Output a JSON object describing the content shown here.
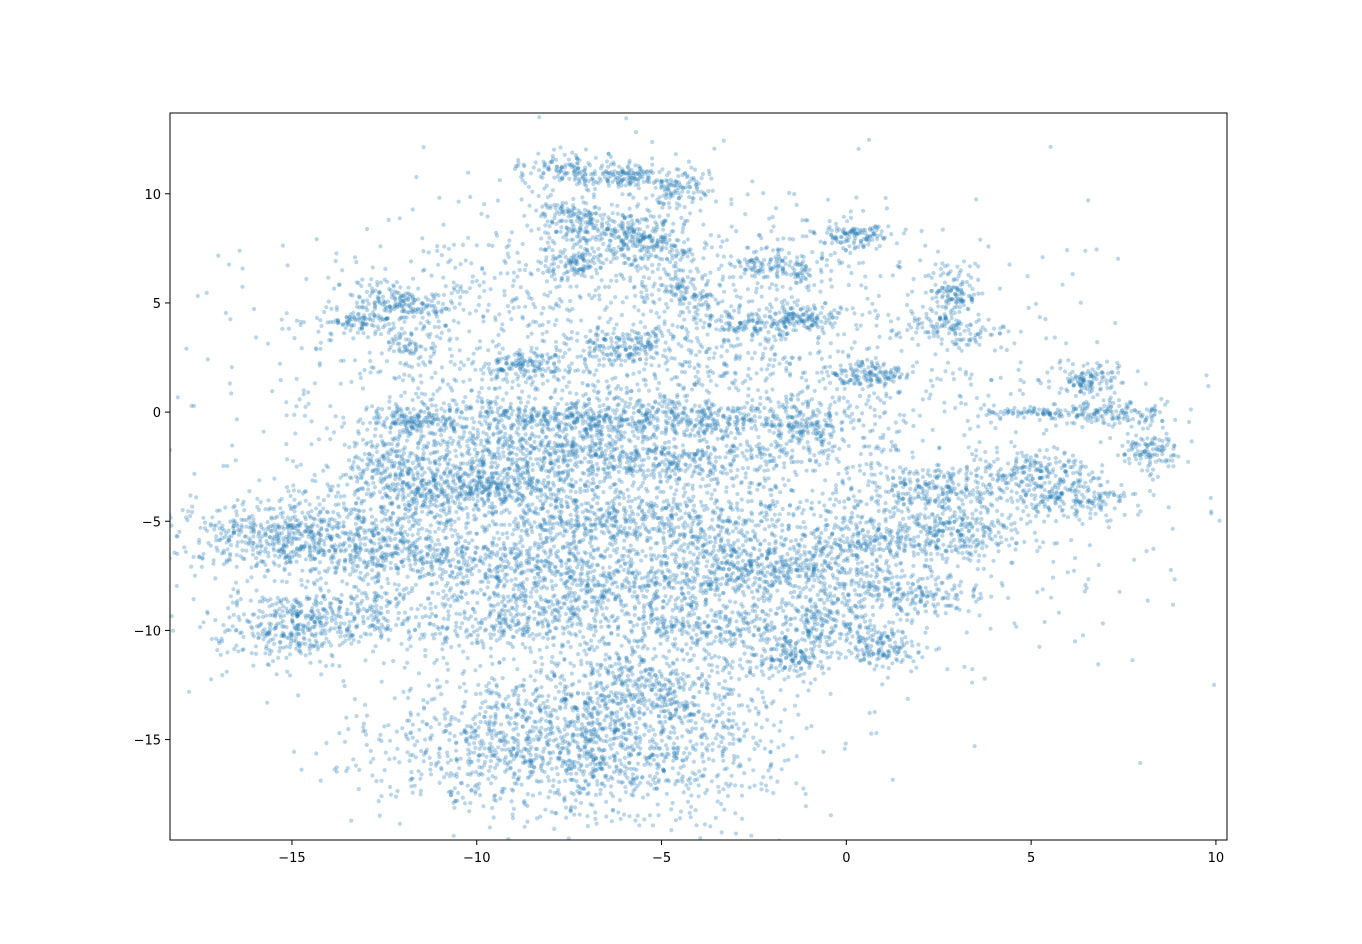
{
  "chart_data": {
    "type": "scatter",
    "title": "",
    "xlabel": "",
    "ylabel": "",
    "xlim": [
      -18.3,
      10.3
    ],
    "ylim": [
      -19.6,
      13.7
    ],
    "x_ticks": [
      -15,
      -10,
      -5,
      0,
      5,
      10
    ],
    "y_ticks": [
      -15,
      -10,
      -5,
      0,
      5,
      10
    ],
    "x_tick_labels": [
      "−15",
      "−10",
      "−5",
      "0",
      "5",
      "10"
    ],
    "y_tick_labels": [
      "−15",
      "−10",
      "−5",
      "0",
      "5",
      "10"
    ],
    "grid": false,
    "legend": "none",
    "marker_color": "#1f77b4",
    "marker_alpha": 0.3,
    "series": [
      {
        "clusters": [
          {
            "cx": -7.4,
            "cy": -15.3,
            "sx": 2.6,
            "sy": 1.7,
            "n": 1500
          },
          {
            "cx": -5.4,
            "cy": -12.6,
            "sx": 1.5,
            "sy": 1.2,
            "n": 450
          },
          {
            "cx": -15.0,
            "cy": -5.7,
            "sx": 1.5,
            "sy": 0.8,
            "n": 550
          },
          {
            "cx": -15.3,
            "cy": -9.9,
            "sx": 0.9,
            "sy": 0.8,
            "n": 260
          },
          {
            "cx": -13.7,
            "cy": -9.4,
            "sx": 0.9,
            "sy": 0.8,
            "n": 220
          },
          {
            "cx": -12.3,
            "cy": -6.1,
            "sx": 1.3,
            "sy": 1.0,
            "n": 300
          },
          {
            "cx": -11.0,
            "cy": -3.3,
            "sx": 1.3,
            "sy": 0.6,
            "n": 280
          },
          {
            "cx": -11.8,
            "cy": -0.5,
            "sx": 0.6,
            "sy": 0.4,
            "n": 150
          },
          {
            "cx": -12.3,
            "cy": -2.2,
            "sx": 0.5,
            "sy": 0.5,
            "n": 100
          },
          {
            "cx": -12.1,
            "cy": 5.1,
            "sx": 0.7,
            "sy": 0.4,
            "n": 150
          },
          {
            "cx": -13.2,
            "cy": 4.1,
            "sx": 0.5,
            "sy": 0.3,
            "n": 90
          },
          {
            "cx": -11.7,
            "cy": 3.3,
            "sx": 0.4,
            "sy": 0.9,
            "n": 90
          },
          {
            "cx": -8.8,
            "cy": 2.1,
            "sx": 0.6,
            "sy": 0.4,
            "n": 130
          },
          {
            "cx": -6.1,
            "cy": 3.0,
            "sx": 0.6,
            "sy": 0.4,
            "n": 130
          },
          {
            "cx": -8.3,
            "cy": -0.2,
            "sx": 1.8,
            "sy": 0.4,
            "n": 300
          },
          {
            "cx": -5.0,
            "cy": -0.4,
            "sx": 1.8,
            "sy": 0.4,
            "n": 300
          },
          {
            "cx": -8.6,
            "cy": -1.7,
            "sx": 1.7,
            "sy": 0.5,
            "n": 280
          },
          {
            "cx": -5.1,
            "cy": -2.2,
            "sx": 1.8,
            "sy": 0.5,
            "n": 300
          },
          {
            "cx": -9.3,
            "cy": -3.4,
            "sx": 1.8,
            "sy": 0.6,
            "n": 320
          },
          {
            "cx": -6.3,
            "cy": -4.9,
            "sx": 2.2,
            "sy": 0.6,
            "n": 380
          },
          {
            "cx": -9.6,
            "cy": -6.7,
            "sx": 2.2,
            "sy": 0.6,
            "n": 360
          },
          {
            "cx": -6.8,
            "cy": -8.2,
            "sx": 2.3,
            "sy": 0.6,
            "n": 380
          },
          {
            "cx": -9.4,
            "cy": -9.6,
            "sx": 1.6,
            "sy": 0.6,
            "n": 280
          },
          {
            "cx": -4.0,
            "cy": -9.8,
            "sx": 1.3,
            "sy": 0.6,
            "n": 250
          },
          {
            "cx": -3.6,
            "cy": -6.8,
            "sx": 1.0,
            "sy": 0.7,
            "n": 200
          },
          {
            "cx": -1.4,
            "cy": -7.2,
            "sx": 1.0,
            "sy": 0.7,
            "n": 230
          },
          {
            "cx": 0.4,
            "cy": -6.0,
            "sx": 1.1,
            "sy": 0.6,
            "n": 230
          },
          {
            "cx": -0.5,
            "cy": -9.7,
            "sx": 1.0,
            "sy": 0.7,
            "n": 220
          },
          {
            "cx": 1.0,
            "cy": -10.9,
            "sx": 0.5,
            "sy": 0.4,
            "n": 110
          },
          {
            "cx": -1.5,
            "cy": -11.2,
            "sx": 0.6,
            "sy": 0.5,
            "n": 140
          },
          {
            "cx": 1.6,
            "cy": -8.2,
            "sx": 1.0,
            "sy": 0.5,
            "n": 200
          },
          {
            "cx": 3.0,
            "cy": -5.4,
            "sx": 0.9,
            "sy": 0.6,
            "n": 220
          },
          {
            "cx": 2.3,
            "cy": -3.6,
            "sx": 1.0,
            "sy": 0.5,
            "n": 200
          },
          {
            "cx": 6.1,
            "cy": -3.9,
            "sx": 0.9,
            "sy": 0.5,
            "n": 220
          },
          {
            "cx": 5.0,
            "cy": -2.6,
            "sx": 0.8,
            "sy": 0.4,
            "n": 150
          },
          {
            "cx": 7.2,
            "cy": -0.1,
            "sx": 0.8,
            "sy": 0.3,
            "n": 130
          },
          {
            "cx": 8.2,
            "cy": -1.8,
            "sx": 0.4,
            "sy": 0.5,
            "n": 110
          },
          {
            "cx": 6.6,
            "cy": 1.6,
            "sx": 0.5,
            "sy": 0.4,
            "n": 120
          },
          {
            "cx": 5.2,
            "cy": 0.0,
            "sx": 0.9,
            "sy": 0.1,
            "n": 80
          },
          {
            "cx": -1.2,
            "cy": -0.6,
            "sx": 0.6,
            "sy": 0.5,
            "n": 150
          },
          {
            "cx": 0.6,
            "cy": 1.7,
            "sx": 0.6,
            "sy": 0.3,
            "n": 120
          },
          {
            "cx": -1.2,
            "cy": 4.4,
            "sx": 0.4,
            "sy": 0.3,
            "n": 80
          },
          {
            "cx": -2.2,
            "cy": 4.1,
            "sx": 0.8,
            "sy": 0.3,
            "n": 130
          },
          {
            "cx": -1.8,
            "cy": 6.7,
            "sx": 0.8,
            "sy": 0.4,
            "n": 140
          },
          {
            "cx": 0.2,
            "cy": 8.1,
            "sx": 0.6,
            "sy": 0.3,
            "n": 120
          },
          {
            "cx": 2.9,
            "cy": 5.5,
            "sx": 0.4,
            "sy": 0.6,
            "n": 130
          },
          {
            "cx": 2.8,
            "cy": 3.8,
            "sx": 0.7,
            "sy": 0.4,
            "n": 110
          },
          {
            "cx": -7.3,
            "cy": 11.0,
            "sx": 0.7,
            "sy": 0.4,
            "n": 140
          },
          {
            "cx": -5.9,
            "cy": 10.8,
            "sx": 0.5,
            "sy": 0.3,
            "n": 110
          },
          {
            "cx": -4.5,
            "cy": 10.2,
            "sx": 0.4,
            "sy": 0.4,
            "n": 100
          },
          {
            "cx": -7.4,
            "cy": 8.9,
            "sx": 0.5,
            "sy": 0.6,
            "n": 130
          },
          {
            "cx": -6.2,
            "cy": 8.2,
            "sx": 0.6,
            "sy": 0.5,
            "n": 150
          },
          {
            "cx": -5.2,
            "cy": 7.7,
            "sx": 0.5,
            "sy": 0.7,
            "n": 150
          },
          {
            "cx": -7.3,
            "cy": 6.9,
            "sx": 0.5,
            "sy": 0.3,
            "n": 100
          },
          {
            "cx": -4.3,
            "cy": 5.7,
            "sx": 0.3,
            "sy": 0.5,
            "n": 80
          },
          {
            "cx": -4.8,
            "cy": -3.9,
            "sx": 6.0,
            "sy": 4.3,
            "n": 2400
          },
          {
            "cx": -5.4,
            "cy": 3.9,
            "sx": 4.5,
            "sy": 3.2,
            "n": 1200
          }
        ]
      }
    ]
  }
}
